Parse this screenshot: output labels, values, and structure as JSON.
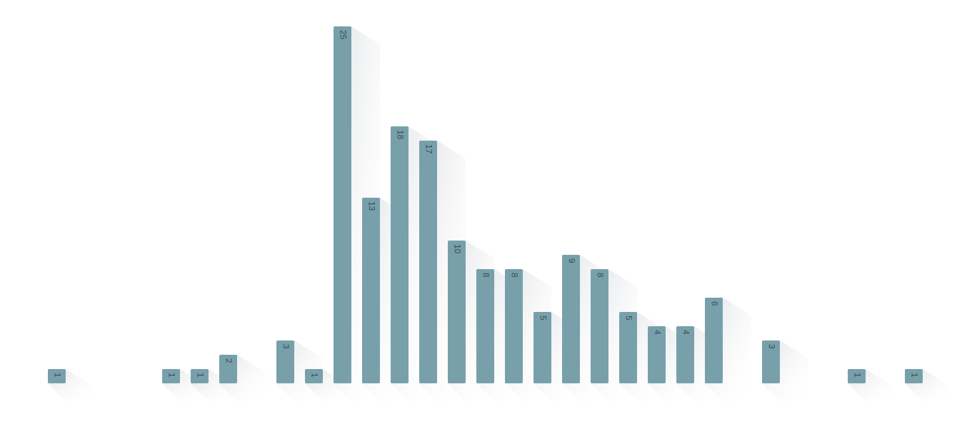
{
  "chart_data": {
    "type": "bar",
    "color": "#78a0ab",
    "ylim": [
      0,
      25
    ],
    "values": [
      1,
      null,
      null,
      null,
      1,
      1,
      2,
      null,
      3,
      1,
      25,
      13,
      18,
      17,
      10,
      8,
      8,
      5,
      9,
      8,
      5,
      4,
      4,
      6,
      null,
      3,
      null,
      null,
      1,
      null,
      1
    ]
  }
}
